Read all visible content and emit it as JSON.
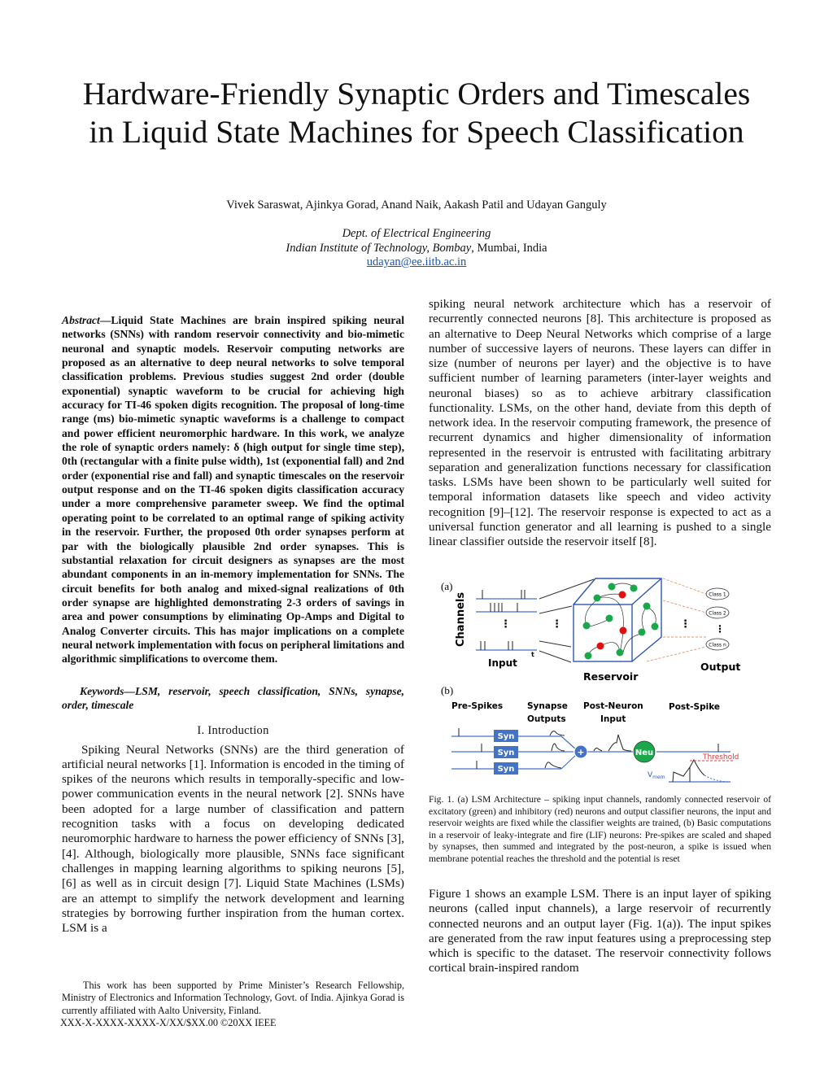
{
  "title_line1": "Hardware-Friendly Synaptic Orders and Timescales",
  "title_line2": "in Liquid State Machines for Speech Classification",
  "authors": "Vivek Saraswat, Ajinkya Gorad, Anand Naik, Aakash Patil and Udayan Ganguly",
  "affiliation": {
    "dept": "Dept. of Electrical Engineering",
    "institute": "Indian Institute of Technology, Bombay",
    "location": ", Mumbai, India",
    "email": "udayan@ee.iitb.ac.in"
  },
  "abstract_label": "Abstract",
  "abstract_text": "—Liquid State Machines are brain inspired spiking neural networks (SNNs) with random reservoir connectivity and bio-mimetic neuronal and synaptic models. Reservoir computing networks are proposed as an alternative to deep neural networks to solve temporal classification problems. Previous studies suggest 2nd order (double exponential) synaptic waveform to be crucial for achieving high accuracy for TI-46 spoken digits recognition. The proposal of long-time range (ms) bio-mimetic synaptic waveforms is a challenge to compact and power efficient neuromorphic hardware. In this work, we analyze the role of synaptic orders namely: δ (high output for single time step), 0th (rectangular with a finite pulse width), 1st (exponential fall) and 2nd order (exponential rise and fall) and synaptic timescales on the reservoir output response and on the TI-46 spoken digits classification accuracy under a more comprehensive parameter sweep. We find the optimal operating point to be correlated to an optimal range of spiking activity in the reservoir. Further, the proposed 0th order synapses perform at par with the biologically plausible 2nd order synapses. This is substantial relaxation for circuit designers as synapses are the most abundant components in an in-memory implementation for SNNs. The circuit benefits for both analog and mixed-signal realizations of 0th order synapse are highlighted demonstrating 2-3 orders of savings in area and power consumptions by eliminating Op-Amps and Digital to Analog Converter circuits. This has major implications on a complete neural network implementation with focus on peripheral limitations and algorithmic simplifications to overcome them.",
  "keywords_label": "Keywords",
  "keywords_text": "—LSM, reservoir, speech classification, SNNs, synapse, order, timescale",
  "section_heading": "I. Introduction",
  "intro_para1": "Spiking Neural Networks (SNNs) are the third generation of artificial neural networks [1]. Information is encoded in the timing of spikes of the neurons which results in temporally-specific and low-power communication events in the neural network [2]. SNNs have been adopted for a large number of classification and pattern recognition tasks with a focus on developing dedicated neuromorphic hardware to harness the power efficiency of SNNs [3], [4]. Although, biologically more plausible, SNNs face significant challenges in mapping learning algorithms to spiking neurons [5], [6] as well as in circuit design [7]. Liquid State Machines (LSMs) are an attempt to simplify the network development and learning strategies by borrowing further inspiration from the human cortex. LSM is a",
  "right_para1": "spiking neural network architecture which has a reservoir of recurrently connected neurons [8]. This architecture is proposed as an alternative to Deep Neural Networks which comprise of a large number of successive layers of neurons. These layers can differ in size (number of neurons per layer) and the objective is to have sufficient number of learning parameters (inter-layer weights and neuronal biases) so as to achieve arbitrary classification functionality. LSMs, on the other hand, deviate from this depth of network idea. In the reservoir computing framework, the presence of recurrent dynamics and higher dimensionality of information represented in the reservoir is entrusted with facilitating arbitrary separation and generalization functions necessary for classification tasks. LSMs have been shown to be particularly well suited for temporal information datasets like speech and video activity recognition [9]–[12]. The reservoir response is expected to act as a universal function generator and all learning is pushed to a single linear classifier outside the reservoir itself [8].",
  "figure": {
    "panel_a": "(a)",
    "panel_b": "(b)",
    "channels": "Channels",
    "input": "Input",
    "t": "t",
    "reservoir": "Reservoir",
    "output": "Output",
    "classes": [
      "Class 1",
      "Class 2",
      "Class n"
    ],
    "pre_spikes": "Pre-Spikes",
    "synapse_outputs_1": "Synapse",
    "synapse_outputs_2": "Outputs",
    "post_neuron_1": "Post-Neuron",
    "post_neuron_2": "Input",
    "post_spike": "Post-Spike",
    "syn": "Syn",
    "plus": "+",
    "neu": "Neu",
    "threshold": "Threshold",
    "vmem": "V",
    "vmem_sub": "mem",
    "colors": {
      "blue": "#4472c4",
      "green": "#1aa84a",
      "red": "#e01010",
      "threshold": "#d04040"
    }
  },
  "caption": "Fig. 1. (a) LSM Architecture – spiking input channels, randomly connected reservoir of excitatory (green) and inhibitory (red) neurons and output classifier neurons, the input and reservoir weights are fixed while the classifier weights are trained, (b) Basic computations in a reservoir of leaky-integrate and fire (LIF) neurons: Pre-spikes are scaled and shaped by synapses, then summed and integrated by the post-neuron, a spike is issued when membrane potential reaches the threshold and the potential is reset",
  "right_para2": "Figure 1 shows an example LSM. There is an input layer of spiking neurons (called input channels), a large reservoir of recurrently connected neurons and an output layer (Fig. 1(a)). The input spikes are generated from the raw input features using a preprocessing step which is specific to the dataset. The reservoir connectivity follows cortical brain-inspired random",
  "footnote": "This work has been supported by Prime Minister’s Research Fellowship, Ministry of Electronics and Information Technology, Govt. of India. Ajinkya Gorad is currently affiliated with Aalto University, Finland.",
  "copyright": "XXX-X-XXXX-XXXX-X/XX/$XX.00 ©20XX IEEE"
}
